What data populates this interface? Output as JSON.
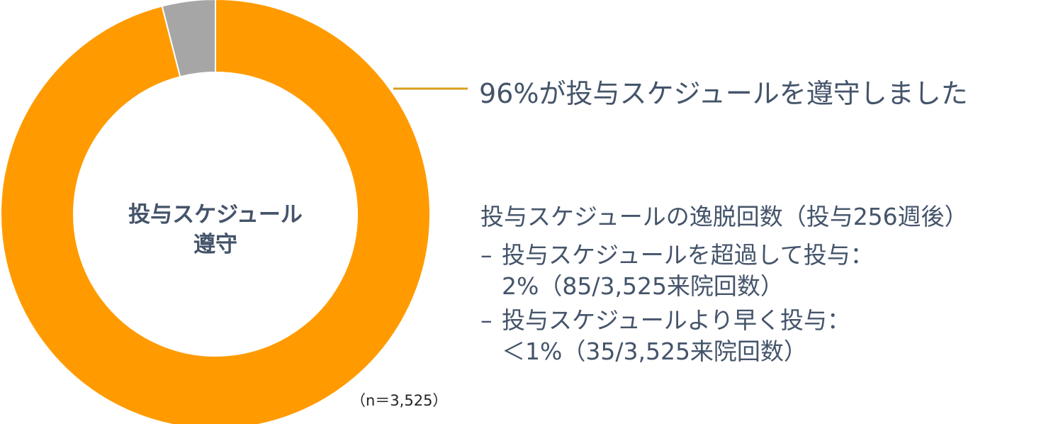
{
  "chart_data": {
    "type": "pie",
    "donut": true,
    "slices": [
      {
        "label": "投与スケジュール遵守",
        "value": 96,
        "color": "#ff9b00"
      },
      {
        "label": "",
        "value": 4,
        "color": "#a6a6a6"
      }
    ],
    "center_label": [
      "投与スケジュール",
      "遵守"
    ],
    "callout": "96%が投与スケジュールを遵守しました",
    "n_label": "（n＝3,525）"
  },
  "details": {
    "title": "投与スケジュールの逸脱回数（投与256週後）",
    "bullet": "–",
    "items": [
      {
        "line1": "投与スケジュールを超過して投与：",
        "line2": "2%（85/3,525来院回数）"
      },
      {
        "line1": "投与スケジュールより早く投与：",
        "line2": "＜1%（35/3,525来院回数）"
      }
    ]
  },
  "colors": {
    "accent": "#ff9b00",
    "other": "#a6a6a6",
    "leader": "#d9a01e",
    "text": "#44546a"
  }
}
